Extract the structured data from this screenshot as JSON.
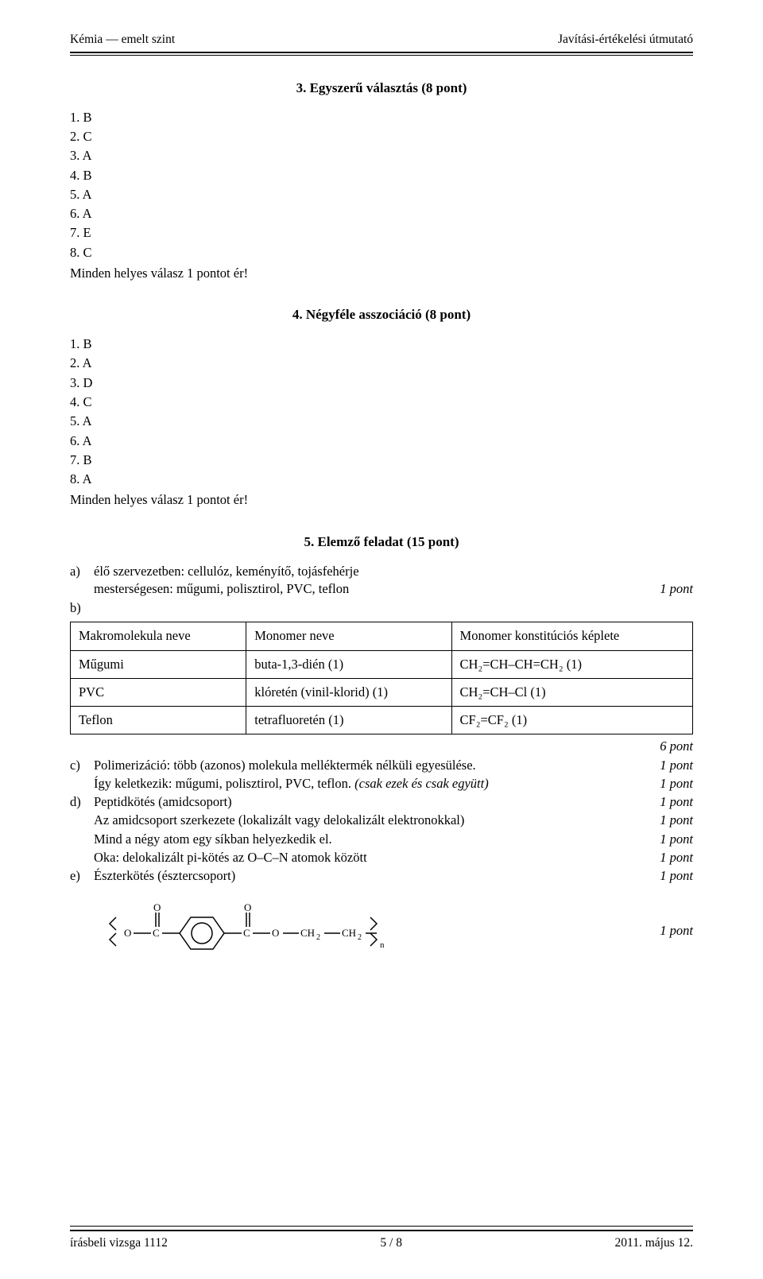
{
  "header": {
    "left": "Kémia — emelt szint",
    "right": "Javítási-értékelési útmutató"
  },
  "section1": {
    "title": "3. Egyszerű választás (8 pont)",
    "answers": [
      "1.  B",
      "2.  C",
      "3.  A",
      "4.  B",
      "5.  A",
      "6.  A",
      "7.  E",
      "8.  C"
    ],
    "note": "Minden helyes válasz 1 pontot ér!"
  },
  "section2": {
    "title": "4. Négyféle asszociáció (8 pont)",
    "answers": [
      "1.  B",
      "2.  A",
      "3.  D",
      "4.  C",
      "5.  A",
      "6.  A",
      "7.  B",
      "8.  A"
    ],
    "note": "Minden helyes válasz 1 pontot ér!"
  },
  "section3": {
    "title": "5. Elemző feladat (15 pont)",
    "a_label": "a)",
    "b_label": "b)",
    "a_line1": "élő szervezetben: cellulóz, keményítő, tojásfehérje",
    "a_line2_left": "mesterségesen: műgumi, polisztirol, PVC, teflon",
    "a_line2_right": "1 pont",
    "table": {
      "columns": [
        "Makromolekula neve",
        "Monomer neve",
        "Monomer konstitúciós képlete"
      ],
      "rows": [
        [
          "Műgumi",
          "buta-1,3-dién (1)",
          "CH₂=CH–CH=CH₂  (1)"
        ],
        [
          "PVC",
          "klóretén (vinil-klorid) (1)",
          "CH₂=CH–Cl   (1)"
        ],
        [
          "Teflon",
          "tetrafluoretén (1)",
          "CF₂=CF₂  (1)"
        ]
      ]
    },
    "after_table": "6 pont",
    "lines": [
      {
        "label": "c)",
        "left": "Polimerizáció: több (azonos) molekula melléktermék nélküli egyesülése.",
        "right": "1 pont"
      },
      {
        "label": "",
        "left": "Így keletkezik: műgumi, polisztirol, PVC, teflon.  <span style=\"font-style:italic\">(csak ezek és csak együtt)</span>",
        "right": "1 pont"
      },
      {
        "label": "d)",
        "left": "Peptidkötés (amidcsoport)",
        "right": "1 pont"
      },
      {
        "label": "",
        "left": "Az amidcsoport szerkezete (lokalizált vagy delokalizált elektronokkal)",
        "right": "1 pont"
      },
      {
        "label": "",
        "left": "Mind a négy atom egy síkban helyezkedik el.",
        "right": "1 pont"
      },
      {
        "label": "",
        "left": "Oka: delokalizált pi-kötés az O–C–N atomok között",
        "right": "1 pont"
      },
      {
        "label": "e)",
        "left": "Észterkötés (észtercsoport)",
        "right": "1 pont"
      }
    ],
    "figure_right": "1 pont",
    "svg": {
      "atom_font": 13,
      "line_color": "#000",
      "line_w": 1.5
    }
  },
  "footer": {
    "left": "írásbeli vizsga 1112",
    "center": "5 / 8",
    "right": "2011. május 12."
  }
}
